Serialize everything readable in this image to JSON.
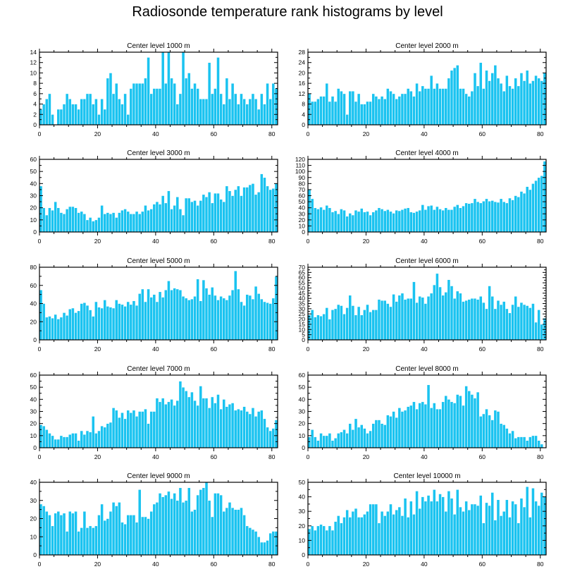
{
  "figure_title": "Radiosonde temperature rank histograms by level",
  "colors": {
    "bar": "#1ac3f0",
    "bar_edge": "#ffffff",
    "axis": "#000000"
  },
  "chart_data": [
    {
      "type": "bar",
      "title": "Center level 1000 m",
      "xlim": [
        0,
        82
      ],
      "ylim": [
        0,
        14
      ],
      "yticks": [
        0,
        2,
        4,
        6,
        8,
        10,
        12,
        14
      ],
      "xticks": [
        0,
        20,
        40,
        60,
        80
      ],
      "values": [
        3,
        4,
        5,
        6,
        2,
        0,
        3,
        3,
        4,
        6,
        5,
        4,
        4,
        3,
        5,
        5,
        6,
        6,
        4,
        5,
        2,
        5,
        3,
        9,
        10,
        6,
        8,
        5,
        4,
        6,
        2,
        7,
        8,
        8,
        8,
        8,
        9,
        13,
        6,
        7,
        7,
        7,
        14,
        8,
        14,
        9,
        8,
        4,
        6,
        14,
        9,
        10,
        7,
        8,
        7,
        5,
        5,
        5,
        12,
        6,
        7,
        13,
        6,
        4,
        9,
        5,
        8,
        6,
        4,
        6,
        5,
        4,
        5,
        6,
        5,
        3,
        6,
        4,
        8,
        5,
        8,
        7
      ]
    },
    {
      "type": "bar",
      "title": "Center level 2000 m",
      "xlim": [
        0,
        82
      ],
      "ylim": [
        0,
        28
      ],
      "yticks": [
        0,
        4,
        8,
        12,
        16,
        20,
        24,
        28
      ],
      "xticks": [
        0,
        20,
        40,
        60,
        80
      ],
      "values": [
        12,
        9,
        9,
        10,
        11,
        11,
        16,
        9,
        11,
        9,
        14,
        13,
        12,
        4,
        13,
        13,
        9,
        12,
        8,
        8,
        9,
        9,
        12,
        11,
        10,
        11,
        10,
        14,
        13,
        12,
        10,
        11,
        12,
        12,
        14,
        13,
        11,
        16,
        13,
        15,
        14,
        14,
        19,
        14,
        16,
        14,
        14,
        14,
        18,
        21,
        22,
        23,
        14,
        14,
        12,
        11,
        13,
        20,
        15,
        24,
        14,
        21,
        17,
        20,
        23,
        18,
        16,
        13,
        19,
        15,
        14,
        18,
        15,
        20,
        17,
        21,
        16,
        17,
        19,
        18,
        17,
        20
      ]
    },
    {
      "type": "bar",
      "title": "Center level 3000 m",
      "xlim": [
        0,
        82
      ],
      "ylim": [
        0,
        60
      ],
      "yticks": [
        0,
        10,
        20,
        30,
        40,
        50,
        60
      ],
      "xticks": [
        0,
        20,
        40,
        60,
        80
      ],
      "values": [
        38,
        20,
        14,
        20,
        18,
        25,
        20,
        16,
        15,
        19,
        21,
        21,
        20,
        16,
        17,
        15,
        10,
        12,
        9,
        10,
        12,
        22,
        15,
        16,
        15,
        16,
        12,
        16,
        18,
        19,
        17,
        15,
        15,
        17,
        15,
        17,
        22,
        18,
        19,
        23,
        25,
        23,
        30,
        24,
        34,
        19,
        22,
        29,
        19,
        14,
        28,
        28,
        25,
        26,
        22,
        26,
        31,
        29,
        33,
        24,
        32,
        32,
        27,
        25,
        38,
        34,
        30,
        35,
        38,
        30,
        37,
        37,
        39,
        40,
        31,
        33,
        48,
        45,
        38,
        35,
        36,
        40
      ]
    },
    {
      "type": "bar",
      "title": "Center level 4000 m",
      "xlim": [
        0,
        82
      ],
      "ylim": [
        0,
        120
      ],
      "yticks": [
        0,
        10,
        20,
        30,
        40,
        50,
        60,
        70,
        80,
        90,
        100,
        110,
        120
      ],
      "xticks": [
        0,
        20,
        40,
        60,
        80
      ],
      "values": [
        70,
        55,
        40,
        38,
        41,
        37,
        44,
        40,
        33,
        35,
        30,
        38,
        36,
        26,
        31,
        28,
        36,
        34,
        39,
        33,
        34,
        28,
        33,
        36,
        40,
        38,
        35,
        37,
        34,
        31,
        36,
        35,
        37,
        39,
        40,
        33,
        32,
        34,
        36,
        45,
        37,
        43,
        44,
        37,
        42,
        38,
        36,
        40,
        37,
        37,
        42,
        45,
        40,
        43,
        48,
        47,
        48,
        55,
        50,
        48,
        51,
        55,
        51,
        52,
        50,
        49,
        55,
        50,
        48,
        56,
        53,
        60,
        58,
        67,
        64,
        75,
        70,
        80,
        85,
        90,
        93,
        117
      ]
    },
    {
      "type": "bar",
      "title": "Center level 5000 m",
      "xlim": [
        0,
        82
      ],
      "ylim": [
        0,
        80
      ],
      "yticks": [
        0,
        20,
        40,
        60,
        80
      ],
      "xticks": [
        0,
        20,
        40,
        60,
        80
      ],
      "values": [
        55,
        40,
        25,
        26,
        24,
        28,
        23,
        25,
        30,
        27,
        34,
        35,
        30,
        32,
        40,
        41,
        38,
        33,
        26,
        42,
        36,
        35,
        44,
        37,
        36,
        35,
        44,
        40,
        39,
        37,
        42,
        39,
        43,
        38,
        51,
        56,
        42,
        56,
        47,
        50,
        42,
        53,
        47,
        55,
        65,
        55,
        57,
        56,
        55,
        48,
        46,
        44,
        45,
        48,
        67,
        43,
        66,
        57,
        50,
        58,
        49,
        44,
        48,
        46,
        44,
        49,
        55,
        76,
        56,
        42,
        38,
        50,
        49,
        45,
        59,
        51,
        45,
        42,
        41,
        40,
        46,
        70
      ]
    },
    {
      "type": "bar",
      "title": "Center level 6000 m",
      "xlim": [
        0,
        82
      ],
      "ylim": [
        0,
        70
      ],
      "yticks": [
        0,
        5,
        10,
        15,
        20,
        25,
        30,
        35,
        40,
        45,
        50,
        55,
        60,
        65,
        70
      ],
      "xticks": [
        0,
        20,
        40,
        60,
        80
      ],
      "values": [
        24,
        29,
        22,
        24,
        23,
        25,
        31,
        20,
        29,
        30,
        34,
        33,
        25,
        31,
        43,
        33,
        24,
        32,
        24,
        29,
        34,
        27,
        29,
        29,
        39,
        38,
        38,
        35,
        32,
        44,
        37,
        43,
        45,
        39,
        40,
        40,
        56,
        36,
        42,
        41,
        35,
        42,
        45,
        53,
        64,
        51,
        43,
        46,
        58,
        52,
        40,
        47,
        45,
        37,
        38,
        39,
        40,
        40,
        39,
        42,
        36,
        30,
        52,
        42,
        30,
        38,
        34,
        37,
        30,
        26,
        34,
        42,
        32,
        36,
        34,
        33,
        31,
        35,
        17,
        29,
        15,
        21
      ]
    },
    {
      "type": "bar",
      "title": "Center level 7000 m",
      "xlim": [
        0,
        82
      ],
      "ylim": [
        0,
        60
      ],
      "yticks": [
        0,
        10,
        20,
        30,
        40,
        50,
        60
      ],
      "xticks": [
        0,
        20,
        40,
        60,
        80
      ],
      "values": [
        19,
        18,
        15,
        12,
        10,
        7,
        7,
        10,
        9,
        9,
        11,
        12,
        12,
        6,
        14,
        11,
        14,
        13,
        26,
        12,
        14,
        18,
        17,
        20,
        21,
        33,
        31,
        25,
        29,
        24,
        31,
        29,
        31,
        26,
        30,
        30,
        32,
        20,
        30,
        30,
        41,
        38,
        41,
        36,
        38,
        40,
        35,
        39,
        55,
        50,
        47,
        42,
        46,
        39,
        35,
        51,
        41,
        41,
        33,
        42,
        37,
        44,
        32,
        40,
        34,
        36,
        37,
        31,
        32,
        31,
        34,
        30,
        28,
        33,
        26,
        30,
        31,
        24,
        17,
        14,
        16,
        23
      ]
    },
    {
      "type": "bar",
      "title": "Center level 8000 m",
      "xlim": [
        0,
        82
      ],
      "ylim": [
        0,
        60
      ],
      "yticks": [
        0,
        10,
        20,
        30,
        40,
        50,
        60
      ],
      "xticks": [
        0,
        20,
        40,
        60,
        80
      ],
      "values": [
        9,
        15,
        9,
        6,
        12,
        10,
        10,
        12,
        6,
        8,
        12,
        13,
        15,
        12,
        20,
        15,
        24,
        17,
        19,
        16,
        12,
        14,
        20,
        23,
        23,
        20,
        19,
        27,
        26,
        30,
        25,
        33,
        30,
        31,
        34,
        35,
        38,
        32,
        37,
        38,
        36,
        52,
        33,
        37,
        32,
        32,
        38,
        43,
        40,
        38,
        37,
        44,
        43,
        35,
        51,
        47,
        44,
        41,
        46,
        26,
        28,
        32,
        27,
        23,
        31,
        30,
        20,
        19,
        16,
        12,
        14,
        8,
        9,
        9,
        9,
        6,
        9,
        10,
        10,
        6,
        3,
        0
      ]
    },
    {
      "type": "bar",
      "title": "Center level 9000 m",
      "xlim": [
        0,
        82
      ],
      "ylim": [
        0,
        40
      ],
      "yticks": [
        0,
        10,
        20,
        30,
        40
      ],
      "xticks": [
        0,
        20,
        40,
        60,
        80
      ],
      "values": [
        28,
        27,
        24,
        22,
        16,
        23,
        24,
        22,
        23,
        13,
        24,
        23,
        24,
        13,
        15,
        24,
        15,
        16,
        15,
        16,
        22,
        28,
        19,
        20,
        24,
        29,
        27,
        29,
        18,
        17,
        22,
        22,
        22,
        18,
        36,
        21,
        21,
        20,
        24,
        28,
        29,
        34,
        32,
        33,
        35,
        31,
        34,
        30,
        37,
        29,
        30,
        37,
        24,
        25,
        33,
        36,
        37,
        40,
        30,
        21,
        34,
        34,
        33,
        24,
        26,
        29,
        26,
        25,
        25,
        26,
        22,
        16,
        15,
        14,
        13,
        10,
        7,
        7,
        8,
        12,
        13,
        13
      ]
    },
    {
      "type": "bar",
      "title": "Center level 10000 m",
      "xlim": [
        0,
        82
      ],
      "ylim": [
        0,
        50
      ],
      "yticks": [
        0,
        10,
        20,
        30,
        40,
        50
      ],
      "xticks": [
        0,
        20,
        40,
        60,
        80
      ],
      "values": [
        18,
        20,
        17,
        20,
        21,
        20,
        17,
        20,
        17,
        23,
        27,
        22,
        26,
        31,
        26,
        30,
        32,
        26,
        26,
        28,
        30,
        35,
        35,
        35,
        22,
        30,
        27,
        30,
        35,
        28,
        31,
        33,
        27,
        39,
        26,
        37,
        28,
        44,
        32,
        40,
        37,
        41,
        37,
        45,
        37,
        42,
        40,
        30,
        44,
        39,
        28,
        45,
        33,
        30,
        37,
        31,
        35,
        35,
        34,
        41,
        22,
        36,
        34,
        43,
        24,
        38,
        27,
        30,
        38,
        26,
        37,
        35,
        22,
        39,
        33,
        47,
        26,
        46,
        37,
        34,
        43,
        40
      ]
    }
  ]
}
